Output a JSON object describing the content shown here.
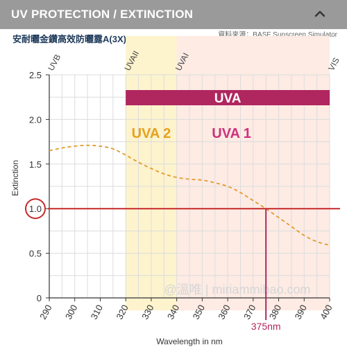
{
  "header": {
    "title": "UV PROTECTION / EXTINCTION"
  },
  "subtitle": "安耐曬金鑽高效防曬露A(3X)",
  "source": "資料來源：BASF Sunscreen Simulator",
  "watermark": "@溫唯 | miriammibao.com",
  "colors": {
    "header_bg": "#9a9a9a",
    "curve": "#e39a2a",
    "threshold": "#c62828",
    "uva_bar": "#b0265f",
    "uva1_text": "#d0307a",
    "uva2_text": "#e6a11a",
    "uvaii_region": "#fdf3cd",
    "uvai_region": "#fdebe4",
    "grid": "#dcdcdc"
  },
  "chart_data": {
    "type": "line",
    "xlabel": "Wavelength in nm",
    "ylabel": "Extinction",
    "xlim": [
      290,
      400
    ],
    "ylim": [
      0,
      2.5
    ],
    "x_ticks": [
      "290",
      "300",
      "310",
      "320",
      "330",
      "340",
      "350",
      "360",
      "370",
      "380",
      "390",
      "400"
    ],
    "y_ticks": [
      "0",
      "0.5",
      "1.0",
      "1.5",
      "2.0",
      "2.5"
    ],
    "grid": true,
    "series": [
      {
        "x": [
          290,
          295,
          300,
          305,
          310,
          315,
          320,
          325,
          330,
          335,
          340,
          345,
          350,
          355,
          360,
          365,
          370,
          375,
          380,
          385,
          390,
          395,
          400
        ],
        "y": [
          1.65,
          1.68,
          1.7,
          1.71,
          1.7,
          1.67,
          1.6,
          1.52,
          1.45,
          1.39,
          1.35,
          1.33,
          1.32,
          1.29,
          1.25,
          1.18,
          1.09,
          1.0,
          0.9,
          0.8,
          0.7,
          0.63,
          0.59
        ]
      }
    ],
    "threshold": {
      "y": 1.0,
      "label": "1.0"
    },
    "marker": {
      "x": 375,
      "label": "375nm"
    },
    "regions": [
      {
        "label": "UVA 2",
        "from": 320,
        "to": 340
      },
      {
        "label": "UVA 1",
        "from": 340,
        "to": 400
      }
    ],
    "uva_bar": {
      "label": "UVA",
      "from": 320,
      "to": 400
    },
    "band_labels": [
      {
        "label": "UVB",
        "x": 290
      },
      {
        "label": "UVAII",
        "x": 320
      },
      {
        "label": "UVAI",
        "x": 340
      },
      {
        "label": "VIS",
        "x": 400
      }
    ]
  }
}
